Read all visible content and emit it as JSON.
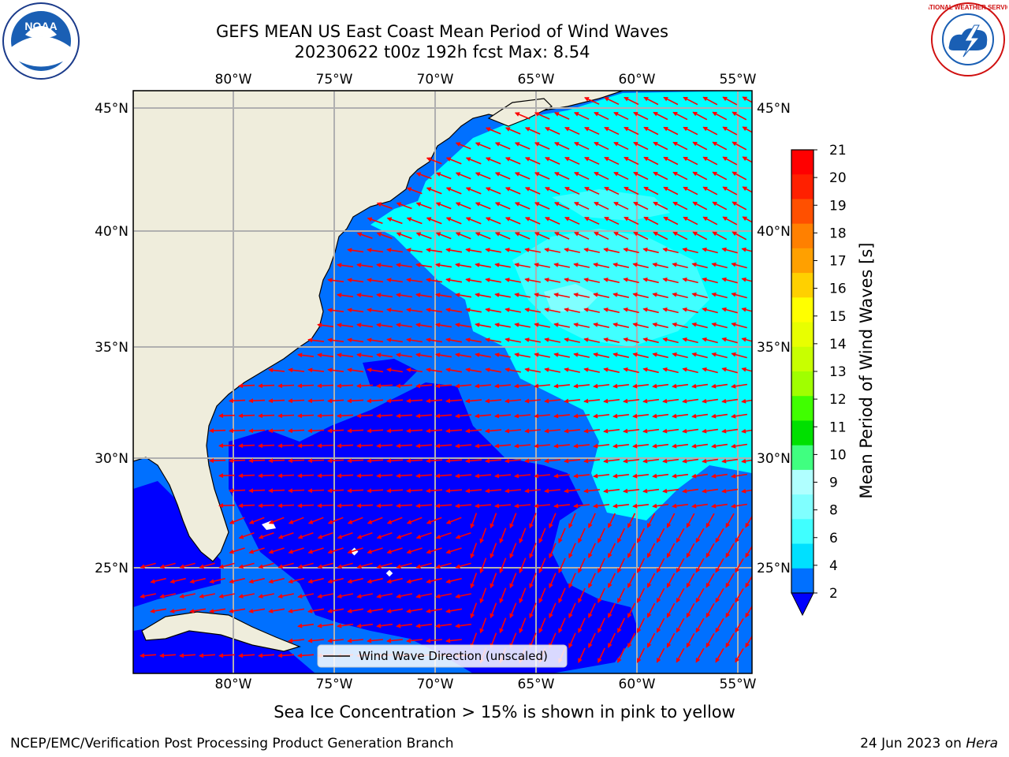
{
  "title": {
    "line1": "GEFS MEAN US East Coast Mean Period of Wind Waves",
    "line2": "20230622 t00z 192h fcst   Max: 8.54"
  },
  "map": {
    "lon_ticks": [
      "80°W",
      "75°W",
      "70°W",
      "65°W",
      "60°W",
      "55°W"
    ],
    "lat_ticks": [
      "45°N",
      "40°N",
      "35°N",
      "30°N",
      "25°N"
    ],
    "legend_label": "Wind Wave Direction (unscaled)",
    "arrow_color": "#ff0000",
    "land_color": "#efeddc",
    "gridline_color": "#b0b0b0"
  },
  "colorbar": {
    "label": "Mean Period of Wind Waves [s]",
    "tick_labels": [
      "2",
      "4",
      "6",
      "8",
      "9",
      "10",
      "11",
      "12",
      "13",
      "14",
      "15",
      "16",
      "17",
      "18",
      "19",
      "20",
      "21"
    ],
    "colors": [
      "#0070ff",
      "#00e0ff",
      "#40ffff",
      "#80ffff",
      "#b0ffff",
      "#40ff80",
      "#00e000",
      "#40ff00",
      "#a0ff00",
      "#c8ff00",
      "#e8ff00",
      "#ffff00",
      "#ffd000",
      "#ffa000",
      "#ff8000",
      "#ff5000",
      "#ff2000",
      "#ff0000"
    ],
    "under_color": "#0000ff"
  },
  "logos": {
    "noaa": "NOAA",
    "nws": "NATIONAL WEATHER SERVICE"
  },
  "footer": {
    "ice_note": "Sea Ice Concentration > 15% is shown in pink to yellow",
    "credit": "NCEP/EMC/Verification Post Processing Product Generation Branch",
    "date": "24 Jun 2023 on ",
    "host": "Hera"
  }
}
